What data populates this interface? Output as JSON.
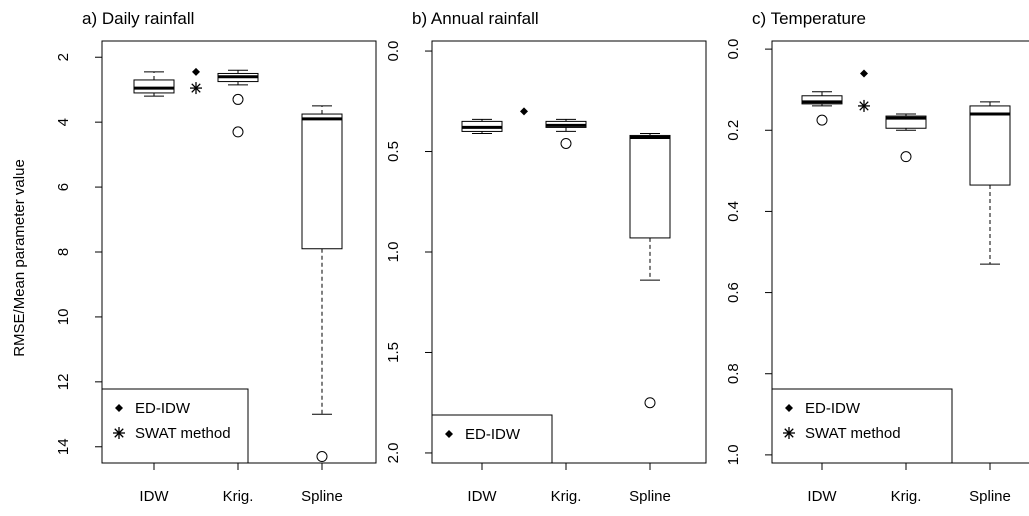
{
  "figure": {
    "ylabel": "RMSE/Mean parameter value"
  },
  "chart_data": [
    {
      "type": "box",
      "title": "a) Daily rainfall",
      "ylabel": "RMSE/Mean parameter value",
      "ylim": [
        14.5,
        1.5
      ],
      "yreversed": true,
      "yticks": [
        2,
        4,
        6,
        8,
        10,
        12,
        14
      ],
      "categories": [
        "IDW",
        "Krig.",
        "Spline"
      ],
      "boxes": [
        {
          "label": "IDW",
          "whisker_low": 2.45,
          "q1": 2.7,
          "median": 2.95,
          "q3": 3.1,
          "whisker_high": 3.2,
          "outliers": []
        },
        {
          "label": "Krig.",
          "whisker_low": 2.4,
          "q1": 2.5,
          "median": 2.6,
          "q3": 2.75,
          "whisker_high": 2.85,
          "outliers": [
            3.3,
            4.3
          ]
        },
        {
          "label": "Spline",
          "whisker_low": 3.5,
          "q1": 3.75,
          "median": 3.9,
          "q3": 7.9,
          "whisker_high": 13.0,
          "outliers": [
            14.3
          ]
        }
      ],
      "points": [
        {
          "series": "ED-IDW",
          "value": 2.45
        },
        {
          "series": "SWAT method",
          "value": 2.95
        }
      ],
      "legend": {
        "position": "bottom-left",
        "entries": [
          {
            "symbol": "diamond",
            "label": "ED-IDW"
          },
          {
            "symbol": "asterisk",
            "label": "SWAT method"
          }
        ]
      }
    },
    {
      "type": "box",
      "title": "b) Annual rainfall",
      "ylim": [
        2.05,
        -0.05
      ],
      "yreversed": true,
      "yticks": [
        0.0,
        0.5,
        1.0,
        1.5,
        2.0
      ],
      "ytick_labels": [
        "0.0",
        "0.5",
        "1.0",
        "1.5",
        "2.0"
      ],
      "categories": [
        "IDW",
        "Krig.",
        "Spline"
      ],
      "boxes": [
        {
          "label": "IDW",
          "whisker_low": 0.34,
          "q1": 0.35,
          "median": 0.38,
          "q3": 0.4,
          "whisker_high": 0.41,
          "outliers": []
        },
        {
          "label": "Krig.",
          "whisker_low": 0.34,
          "q1": 0.35,
          "median": 0.37,
          "q3": 0.38,
          "whisker_high": 0.4,
          "outliers": [
            0.46
          ]
        },
        {
          "label": "Spline",
          "whisker_low": 0.41,
          "q1": 0.42,
          "median": 0.43,
          "q3": 0.93,
          "whisker_high": 1.14,
          "outliers": [
            1.75
          ]
        }
      ],
      "points": [
        {
          "series": "ED-IDW",
          "value": 0.3
        }
      ],
      "legend": {
        "position": "bottom-left",
        "entries": [
          {
            "symbol": "diamond",
            "label": "ED-IDW"
          }
        ]
      }
    },
    {
      "type": "box",
      "title": "c) Temperature",
      "ylim": [
        1.02,
        -0.02
      ],
      "yreversed": true,
      "yticks": [
        0.0,
        0.2,
        0.4,
        0.6,
        0.8,
        1.0
      ],
      "ytick_labels": [
        "0.0",
        "0.2",
        "0.4",
        "0.6",
        "0.8",
        "1.0"
      ],
      "categories": [
        "IDW",
        "Krig.",
        "Spline"
      ],
      "boxes": [
        {
          "label": "IDW",
          "whisker_low": 0.105,
          "q1": 0.115,
          "median": 0.13,
          "q3": 0.135,
          "whisker_high": 0.14,
          "outliers": [
            0.175
          ]
        },
        {
          "label": "Krig.",
          "whisker_low": 0.16,
          "q1": 0.165,
          "median": 0.17,
          "q3": 0.195,
          "whisker_high": 0.2,
          "outliers": [
            0.265
          ]
        },
        {
          "label": "Spline",
          "whisker_low": 0.13,
          "q1": 0.14,
          "median": 0.16,
          "q3": 0.335,
          "whisker_high": 0.53,
          "outliers": []
        }
      ],
      "points": [
        {
          "series": "ED-IDW",
          "value": 0.06
        },
        {
          "series": "SWAT method",
          "value": 0.14
        }
      ],
      "legend": {
        "position": "bottom-left",
        "entries": [
          {
            "symbol": "diamond",
            "label": "ED-IDW"
          },
          {
            "symbol": "asterisk",
            "label": "SWAT method"
          }
        ]
      }
    }
  ]
}
